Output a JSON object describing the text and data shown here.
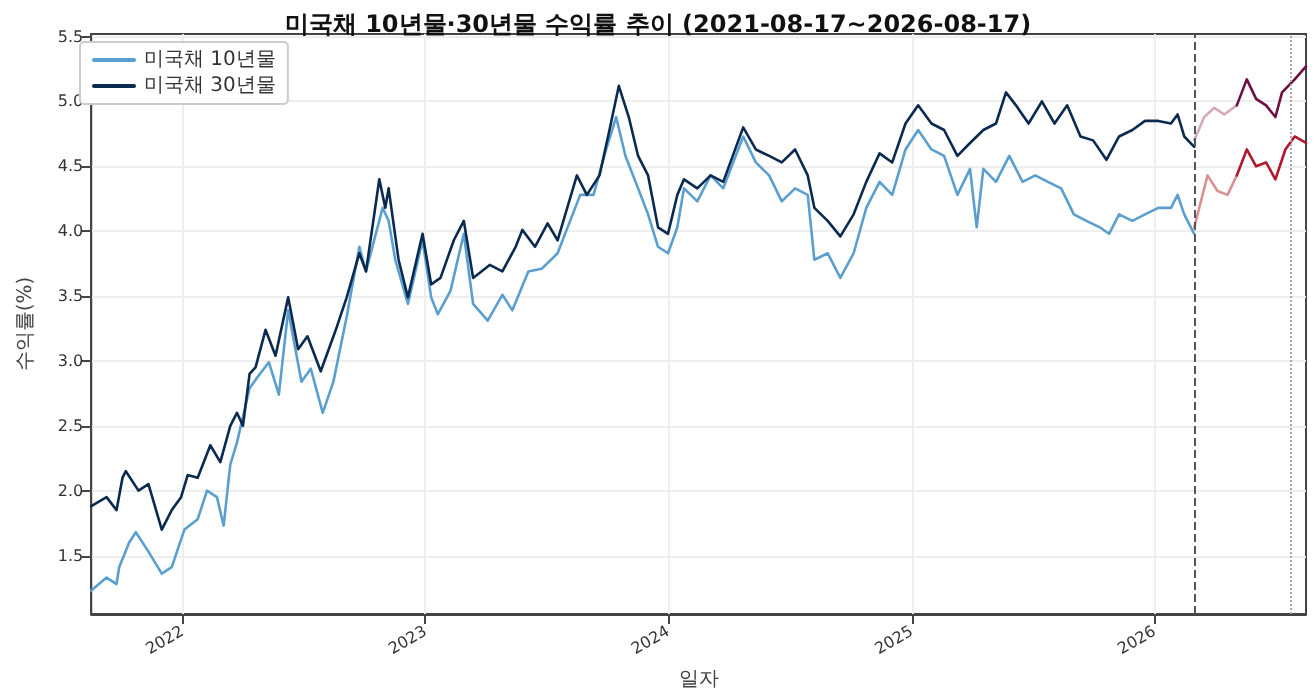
{
  "chart_data": {
    "type": "line",
    "title": "미국채 10년물·30년물 수익률 추이 (2021-08-17~2026-08-17)",
    "xlabel": "일자",
    "ylabel": "수익률(%)",
    "xlim": [
      "2021-08-17",
      "2026-08-17"
    ],
    "xticks": [
      {
        "value": "2022-01-01",
        "label": "2022"
      },
      {
        "value": "2023-01-01",
        "label": "2023"
      },
      {
        "value": "2024-01-01",
        "label": "2024"
      },
      {
        "value": "2025-01-01",
        "label": "2025"
      },
      {
        "value": "2026-01-01",
        "label": "2026"
      }
    ],
    "ylim": [
      1.05,
      5.52
    ],
    "yticks": [
      {
        "value": 1.5,
        "label": "1.5"
      },
      {
        "value": 2,
        "label": "2.0"
      },
      {
        "value": 2.5,
        "label": "2.5"
      },
      {
        "value": 3,
        "label": "3.0"
      },
      {
        "value": 3.5,
        "label": "3.5"
      },
      {
        "value": 4,
        "label": "4.0"
      },
      {
        "value": 4.5,
        "label": "4.5"
      },
      {
        "value": 5,
        "label": "5.0"
      },
      {
        "value": 5.5,
        "label": "5.5"
      }
    ],
    "grid": true,
    "legend": "top left",
    "marker": "none",
    "line_style": "solid",
    "series": [
      {
        "name": "미국채 10년물",
        "color": "#5a9fd0",
        "x": [
          "2021-08-17",
          "2021-09-09",
          "2021-09-24",
          "2021-09-28",
          "2021-10-13",
          "2021-10-23",
          "2021-11-11",
          "2021-12-01",
          "2021-12-16",
          "2022-01-04",
          "2022-01-24",
          "2022-02-07",
          "2022-02-22",
          "2022-03-04",
          "2022-03-14",
          "2022-03-24",
          "2022-04-12",
          "2022-04-26",
          "2022-05-11",
          "2022-05-26",
          "2022-06-09",
          "2022-06-29",
          "2022-07-13",
          "2022-07-31",
          "2022-08-16",
          "2022-09-05",
          "2022-09-24",
          "2022-10-04",
          "2022-10-29",
          "2022-11-07",
          "2022-11-17",
          "2022-12-06",
          "2022-12-28",
          "2023-01-10",
          "2023-01-20",
          "2023-02-08",
          "2023-02-28",
          "2023-03-14",
          "2023-04-05",
          "2023-04-27",
          "2023-05-12",
          "2023-06-05",
          "2023-06-25",
          "2023-07-19",
          "2023-08-22",
          "2023-09-11",
          "2023-09-30",
          "2023-10-15",
          "2023-10-29",
          "2023-11-17",
          "2023-12-02",
          "2023-12-17",
          "2024-01-01",
          "2024-01-15",
          "2024-01-25",
          "2024-02-14",
          "2024-03-05",
          "2024-03-24",
          "2024-04-23",
          "2024-05-12",
          "2024-06-01",
          "2024-06-20",
          "2024-07-10",
          "2024-07-29",
          "2024-08-08",
          "2024-08-28",
          "2024-09-16",
          "2024-10-06",
          "2024-10-25",
          "2024-11-14",
          "2024-12-03",
          "2024-12-23",
          "2025-01-11",
          "2025-01-31",
          "2025-02-19",
          "2025-03-11",
          "2025-03-30",
          "2025-04-09",
          "2025-04-19",
          "2025-05-08",
          "2025-05-28",
          "2025-06-17",
          "2025-07-06",
          "2025-07-25",
          "2025-08-14",
          "2025-09-02",
          "2025-09-21",
          "2025-10-11",
          "2025-10-25",
          "2025-11-09",
          "2025-11-29",
          "2025-12-18",
          "2026-01-07",
          "2026-01-26",
          "2026-02-05",
          "2026-02-15",
          "2026-03-02"
        ],
        "values": [
          1.23,
          1.33,
          1.28,
          1.41,
          1.6,
          1.68,
          1.53,
          1.36,
          1.41,
          1.7,
          1.78,
          2.0,
          1.95,
          1.73,
          2.2,
          2.37,
          2.79,
          2.89,
          2.99,
          2.74,
          3.39,
          2.84,
          2.94,
          2.6,
          2.84,
          3.34,
          3.88,
          3.69,
          4.18,
          4.08,
          3.78,
          3.44,
          3.93,
          3.49,
          3.36,
          3.54,
          3.98,
          3.44,
          3.31,
          3.51,
          3.39,
          3.69,
          3.71,
          3.83,
          4.28,
          4.28,
          4.63,
          4.88,
          4.58,
          4.33,
          4.13,
          3.88,
          3.83,
          4.03,
          4.33,
          4.23,
          4.43,
          4.33,
          4.73,
          4.53,
          4.43,
          4.23,
          4.33,
          4.28,
          3.78,
          3.83,
          3.64,
          3.83,
          4.18,
          4.38,
          4.28,
          4.63,
          4.78,
          4.63,
          4.58,
          4.28,
          4.48,
          4.03,
          4.48,
          4.38,
          4.58,
          4.38,
          4.43,
          4.38,
          4.33,
          4.13,
          4.08,
          4.03,
          3.98,
          4.13,
          4.08,
          4.13,
          4.18,
          4.18,
          4.28,
          4.13,
          3.98
        ]
      },
      {
        "name": "미국채 30년물",
        "color": "#0a2a4f",
        "x": [
          "2021-08-17",
          "2021-09-09",
          "2021-09-24",
          "2021-10-03",
          "2021-10-08",
          "2021-10-27",
          "2021-11-11",
          "2021-12-01",
          "2021-12-16",
          "2021-12-30",
          "2022-01-09",
          "2022-01-24",
          "2022-02-12",
          "2022-02-27",
          "2022-03-14",
          "2022-03-24",
          "2022-04-02",
          "2022-04-12",
          "2022-04-21",
          "2022-05-06",
          "2022-05-21",
          "2022-06-09",
          "2022-06-24",
          "2022-07-08",
          "2022-07-28",
          "2022-08-21",
          "2022-09-05",
          "2022-09-24",
          "2022-10-04",
          "2022-10-24",
          "2022-11-02",
          "2022-11-07",
          "2022-11-22",
          "2022-12-06",
          "2022-12-28",
          "2023-01-10",
          "2023-01-24",
          "2023-02-13",
          "2023-02-28",
          "2023-03-14",
          "2023-04-08",
          "2023-04-27",
          "2023-05-17",
          "2023-05-27",
          "2023-06-15",
          "2023-07-04",
          "2023-07-19",
          "2023-08-17",
          "2023-09-01",
          "2023-09-20",
          "2023-10-05",
          "2023-10-19",
          "2023-11-03",
          "2023-11-17",
          "2023-12-02",
          "2023-12-17",
          "2024-01-01",
          "2024-01-15",
          "2024-01-25",
          "2024-02-14",
          "2024-03-05",
          "2024-03-24",
          "2024-04-23",
          "2024-05-12",
          "2024-06-01",
          "2024-06-20",
          "2024-07-10",
          "2024-07-29",
          "2024-08-08",
          "2024-08-28",
          "2024-09-16",
          "2024-10-06",
          "2024-10-25",
          "2024-11-14",
          "2024-12-03",
          "2024-12-23",
          "2025-01-11",
          "2025-01-31",
          "2025-02-19",
          "2025-03-11",
          "2025-03-30",
          "2025-04-19",
          "2025-05-08",
          "2025-05-23",
          "2025-06-07",
          "2025-06-26",
          "2025-07-16",
          "2025-08-04",
          "2025-08-23",
          "2025-09-12",
          "2025-10-01",
          "2025-10-21",
          "2025-11-09",
          "2025-11-29",
          "2025-12-18",
          "2026-01-07",
          "2026-01-26",
          "2026-02-05",
          "2026-02-15",
          "2026-03-02"
        ],
        "values": [
          1.88,
          1.95,
          1.85,
          2.1,
          2.15,
          2.0,
          2.05,
          1.7,
          1.85,
          1.95,
          2.12,
          2.1,
          2.35,
          2.22,
          2.5,
          2.6,
          2.5,
          2.9,
          2.95,
          3.24,
          3.04,
          3.49,
          3.09,
          3.19,
          2.92,
          3.26,
          3.49,
          3.83,
          3.69,
          4.4,
          4.18,
          4.33,
          3.78,
          3.49,
          3.98,
          3.59,
          3.64,
          3.93,
          4.08,
          3.64,
          3.74,
          3.69,
          3.88,
          4.01,
          3.88,
          4.06,
          3.93,
          4.43,
          4.28,
          4.43,
          4.78,
          5.12,
          4.88,
          4.58,
          4.43,
          4.03,
          3.98,
          4.28,
          4.4,
          4.33,
          4.43,
          4.38,
          4.8,
          4.63,
          4.58,
          4.53,
          4.63,
          4.43,
          4.18,
          4.08,
          3.96,
          4.13,
          4.38,
          4.6,
          4.53,
          4.83,
          4.97,
          4.83,
          4.78,
          4.58,
          4.68,
          4.78,
          4.83,
          5.07,
          4.97,
          4.83,
          5.0,
          4.83,
          4.97,
          4.73,
          4.7,
          4.55,
          4.73,
          4.78,
          4.85,
          4.85,
          4.83,
          4.9,
          4.73,
          4.65
        ]
      },
      {
        "color": "#d99292",
        "x": [
          "2026-03-02",
          "2026-03-22",
          "2026-04-06",
          "2026-04-21",
          "2026-05-05"
        ],
        "values": [
          4.03,
          4.43,
          4.31,
          4.28,
          4.43
        ]
      },
      {
        "color": "#b2182b",
        "x": [
          "2026-05-05",
          "2026-05-20",
          "2026-06-03",
          "2026-06-18",
          "2026-07-02",
          "2026-07-17",
          "2026-07-31",
          "2026-08-17"
        ],
        "values": [
          4.43,
          4.63,
          4.5,
          4.53,
          4.4,
          4.63,
          4.73,
          4.68
        ]
      },
      {
        "color": "#d6a9bc",
        "x": [
          "2026-03-02",
          "2026-03-17",
          "2026-04-01",
          "2026-04-16",
          "2026-05-05"
        ],
        "values": [
          4.7,
          4.88,
          4.95,
          4.9,
          4.97
        ]
      },
      {
        "color": "#6e0f44",
        "x": [
          "2026-05-05",
          "2026-05-20",
          "2026-06-03",
          "2026-06-18",
          "2026-07-02",
          "2026-07-12",
          "2026-07-31",
          "2026-08-17"
        ],
        "values": [
          4.97,
          5.17,
          5.02,
          4.97,
          4.88,
          5.07,
          5.17,
          5.27
        ]
      }
    ],
    "ref_lines": [
      {
        "axis": "x",
        "value": "2026-03-02",
        "color": "#555555",
        "line_style": "dashed"
      },
      {
        "axis": "x",
        "value": "2026-07-26",
        "color": "#aaaaaa",
        "line_style": "dotted"
      }
    ]
  }
}
